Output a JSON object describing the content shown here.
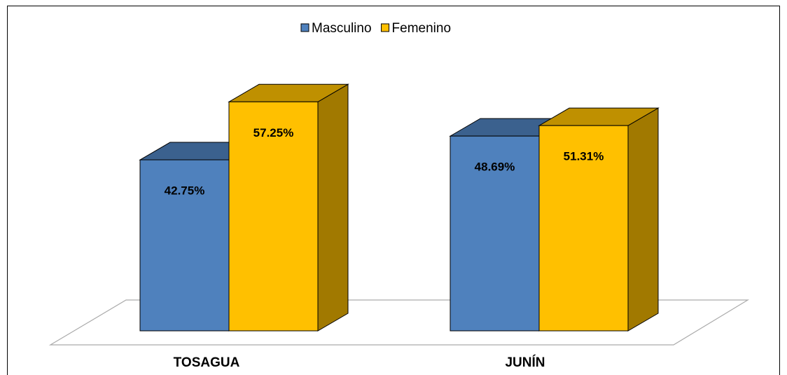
{
  "chart_data": {
    "type": "bar3d",
    "categories": [
      "TOSAGUA",
      "JUNÍN"
    ],
    "series": [
      {
        "name": "Masculino",
        "color": "#4f81bd",
        "values": [
          42.75,
          48.69
        ],
        "value_labels": [
          "42.75%",
          "48.69%"
        ]
      },
      {
        "name": "Femenino",
        "color": "#ffc000",
        "values": [
          57.25,
          51.31
        ],
        "value_labels": [
          "57.25%",
          "51.31%"
        ]
      }
    ],
    "legend": "top"
  }
}
